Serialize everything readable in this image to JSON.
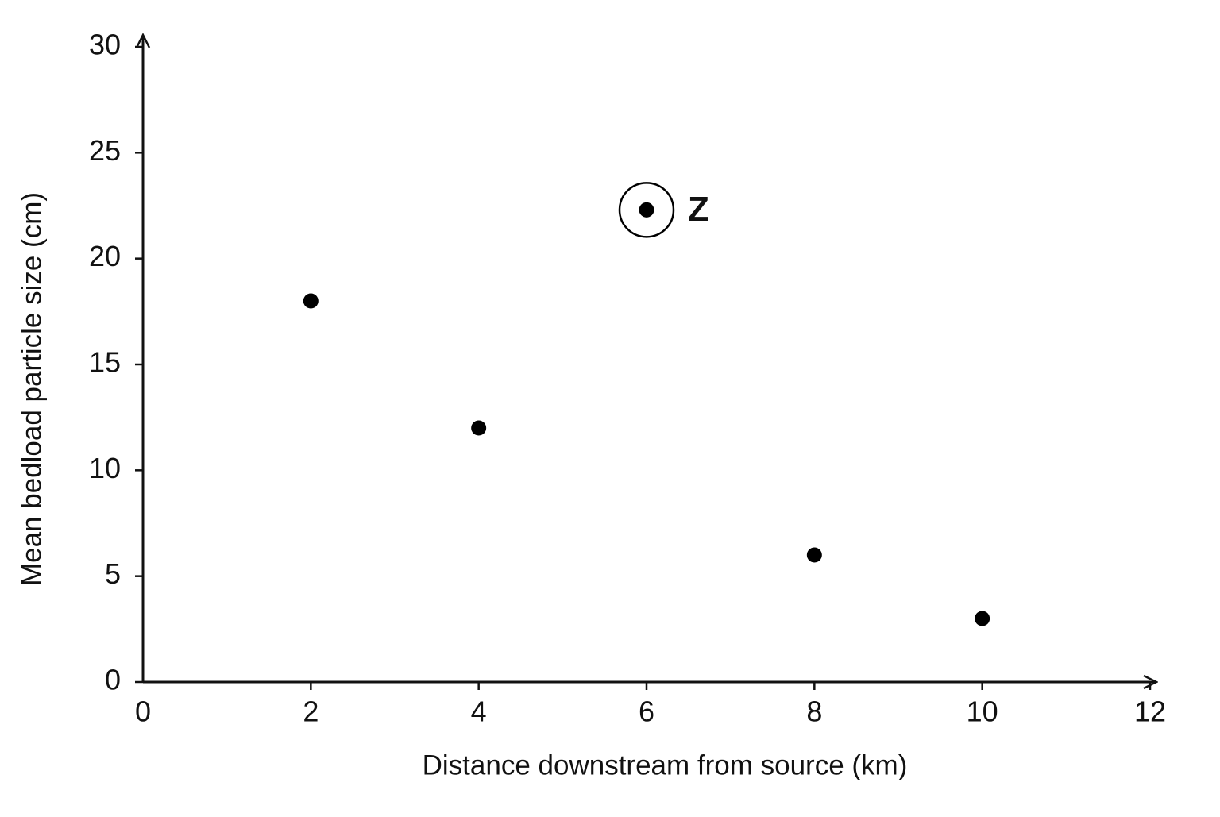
{
  "chart_data": {
    "type": "scatter",
    "x_label": "Distance downstream from source (km)",
    "y_label": "Mean bedload particle size (cm)",
    "x": [
      2,
      4,
      6,
      8,
      10
    ],
    "values": [
      18,
      12,
      22.3,
      6,
      3
    ],
    "point_labels": [
      null,
      null,
      "Z",
      null,
      null
    ],
    "color": "#000000",
    "xlim": [
      0,
      12
    ],
    "xticks": [
      0,
      2,
      4,
      6,
      8,
      10,
      12
    ],
    "ylim": [
      0,
      30
    ],
    "yticks": [
      0,
      5,
      10,
      15,
      20,
      25,
      30
    ],
    "grid": false
  }
}
